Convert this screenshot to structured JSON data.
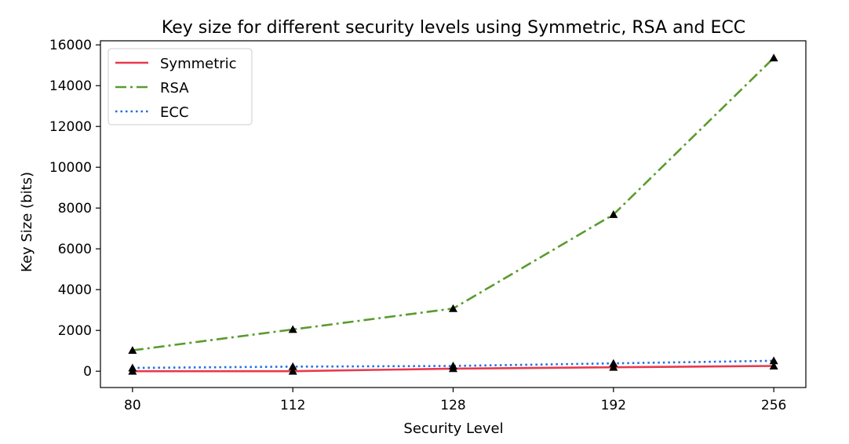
{
  "chart_data": {
    "type": "line",
    "title": "Key size for different security levels using Symmetric, RSA and ECC",
    "xlabel": "Security Level",
    "ylabel": "Key Size (bits)",
    "categories": [
      "80",
      "112",
      "128",
      "192",
      "256"
    ],
    "ylim": [
      -800,
      16200
    ],
    "yticks": [
      0,
      2000,
      4000,
      6000,
      8000,
      10000,
      12000,
      14000,
      16000
    ],
    "grid": false,
    "legend_position": "top-left",
    "marker": "triangle",
    "marker_color": "#000000",
    "series": [
      {
        "name": "Symmetric",
        "values": [
          0,
          0,
          128,
          192,
          256
        ],
        "color": "#e8394c",
        "linestyle": "solid"
      },
      {
        "name": "RSA",
        "values": [
          1024,
          2048,
          3072,
          7680,
          15360
        ],
        "color": "#5a9b2e",
        "linestyle": "dashdot"
      },
      {
        "name": "ECC",
        "values": [
          160,
          224,
          256,
          384,
          512
        ],
        "color": "#1f6fe0",
        "linestyle": "dotted"
      }
    ]
  }
}
